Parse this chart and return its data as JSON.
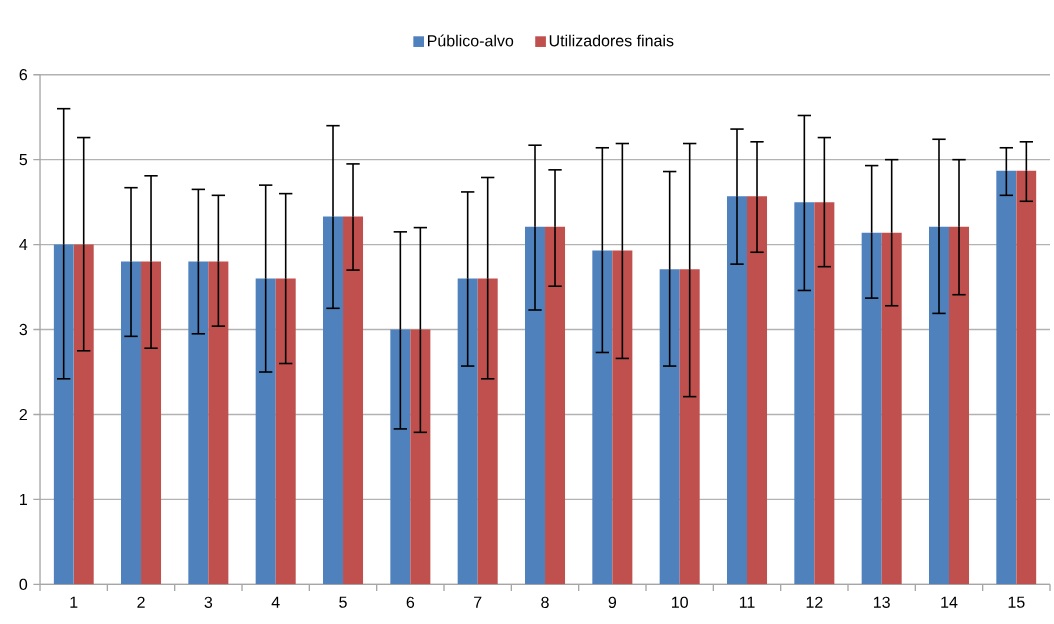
{
  "chart_data": {
    "type": "bar",
    "categories": [
      "1",
      "2",
      "3",
      "4",
      "5",
      "6",
      "7",
      "8",
      "9",
      "10",
      "11",
      "12",
      "13",
      "14",
      "15"
    ],
    "series": [
      {
        "name": "Público-alvo",
        "color": "#4f81bd",
        "values": [
          4.0,
          3.8,
          3.8,
          3.6,
          4.33,
          3.0,
          3.6,
          4.21,
          3.93,
          3.71,
          4.57,
          4.5,
          4.14,
          4.21,
          4.87
        ],
        "errors": [
          [
            2.42,
            5.6
          ],
          [
            2.92,
            4.67
          ],
          [
            2.95,
            4.65
          ],
          [
            2.5,
            4.7
          ],
          [
            3.25,
            5.4
          ],
          [
            1.83,
            4.15
          ],
          [
            2.57,
            4.62
          ],
          [
            3.23,
            5.17
          ],
          [
            2.73,
            5.14
          ],
          [
            2.57,
            4.86
          ],
          [
            3.77,
            5.36
          ],
          [
            3.46,
            5.52
          ],
          [
            3.37,
            4.93
          ],
          [
            3.19,
            5.24
          ],
          [
            4.58,
            5.14
          ]
        ]
      },
      {
        "name": "Utilizadores finais",
        "color": "#c0504d",
        "values": [
          4.0,
          3.8,
          3.8,
          3.6,
          4.33,
          3.0,
          3.6,
          4.21,
          3.93,
          3.71,
          4.57,
          4.5,
          4.14,
          4.21,
          4.87
        ],
        "errors": [
          [
            2.75,
            5.26
          ],
          [
            2.78,
            4.81
          ],
          [
            3.04,
            4.58
          ],
          [
            2.6,
            4.6
          ],
          [
            3.7,
            4.95
          ],
          [
            1.79,
            4.2
          ],
          [
            2.42,
            4.79
          ],
          [
            3.51,
            4.88
          ],
          [
            2.66,
            5.19
          ],
          [
            2.21,
            5.19
          ],
          [
            3.91,
            5.21
          ],
          [
            3.74,
            5.26
          ],
          [
            3.28,
            5.0
          ],
          [
            3.41,
            5.0
          ],
          [
            4.51,
            5.21
          ]
        ]
      }
    ],
    "ylim": [
      0,
      6
    ],
    "yticks": [
      0,
      1,
      2,
      3,
      4,
      5,
      6
    ],
    "grid": "y",
    "legend": "top"
  }
}
